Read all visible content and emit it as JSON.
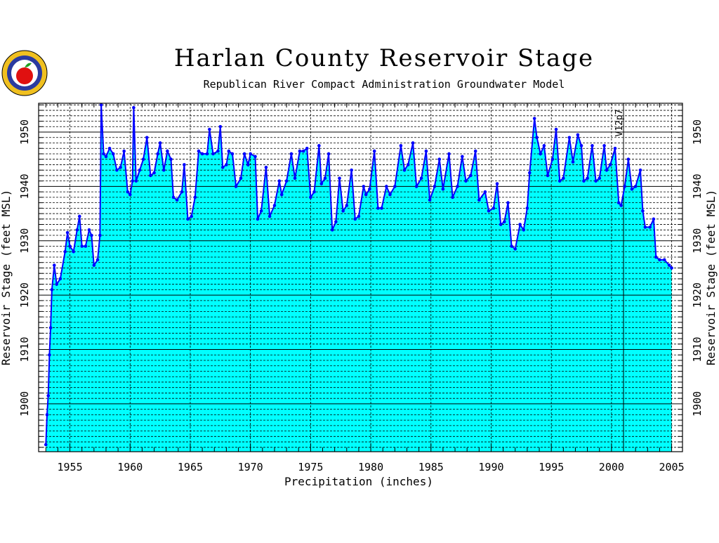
{
  "chart_data": {
    "type": "area",
    "title": "Harlan County Reservoir Stage",
    "subtitle": "Republican River Compact Administration Groundwater Model",
    "x_label": "Precipitation (inches)",
    "y_label": "Reservoir Stage (feet MSL)",
    "y2_label": "Reservoir Stage (feet MSL)",
    "annotation": {
      "text": "V12p7",
      "x": 2001
    },
    "xlim": [
      1952.4,
      2005.9
    ],
    "ylim": [
      1891.2,
      1955.3
    ],
    "xticks": [
      1955,
      1960,
      1965,
      1970,
      1975,
      1980,
      1985,
      1990,
      1995,
      2000,
      2005
    ],
    "xminorticks": [
      1953,
      1954,
      1956,
      1957,
      1958,
      1959,
      1961,
      1962,
      1963,
      1964,
      1966,
      1967,
      1968,
      1969,
      1971,
      1972,
      1973,
      1974,
      1976,
      1977,
      1978,
      1979,
      1981,
      1982,
      1983,
      1984,
      1986,
      1987,
      1988,
      1989,
      1991,
      1992,
      1993,
      1994,
      1996,
      1997,
      1998,
      1999,
      2001,
      2002,
      2003,
      2004
    ],
    "yticks": [
      1900,
      1910,
      1920,
      1930,
      1940,
      1950
    ],
    "yminorticks": [
      1892,
      1893,
      1894,
      1895,
      1896,
      1897,
      1898,
      1899,
      1901,
      1902,
      1903,
      1904,
      1905,
      1906,
      1907,
      1908,
      1909,
      1911,
      1912,
      1913,
      1914,
      1915,
      1916,
      1917,
      1918,
      1919,
      1921,
      1922,
      1923,
      1924,
      1925,
      1926,
      1927,
      1928,
      1929,
      1931,
      1932,
      1933,
      1934,
      1935,
      1936,
      1937,
      1938,
      1939,
      1941,
      1942,
      1943,
      1944,
      1945,
      1946,
      1947,
      1948,
      1949,
      1951,
      1952,
      1953,
      1954,
      1955
    ],
    "grid": true,
    "fill_color": "#00ffff",
    "series": [
      {
        "name": "Reservoir Stage",
        "color": "#0000ff",
        "x": [
          1953.0,
          1953.1,
          1953.2,
          1953.3,
          1953.4,
          1953.5,
          1953.7,
          1953.9,
          1954.2,
          1954.6,
          1954.8,
          1955.0,
          1955.3,
          1955.6,
          1955.8,
          1956.0,
          1956.3,
          1956.6,
          1956.8,
          1957.0,
          1957.3,
          1957.5,
          1957.6,
          1957.8,
          1958.0,
          1958.3,
          1958.6,
          1958.9,
          1959.2,
          1959.5,
          1959.8,
          1960.0,
          1960.2,
          1960.3,
          1960.5,
          1960.8,
          1961.1,
          1961.4,
          1961.7,
          1962.0,
          1962.3,
          1962.5,
          1962.8,
          1963.1,
          1963.4,
          1963.6,
          1963.9,
          1964.3,
          1964.5,
          1964.8,
          1965.1,
          1965.4,
          1965.7,
          1966.0,
          1966.4,
          1966.6,
          1966.9,
          1967.3,
          1967.5,
          1967.7,
          1968.0,
          1968.2,
          1968.5,
          1968.8,
          1969.2,
          1969.5,
          1969.8,
          1970.0,
          1970.4,
          1970.6,
          1970.9,
          1971.3,
          1971.6,
          1972.0,
          1972.4,
          1972.6,
          1973.0,
          1973.4,
          1973.7,
          1974.1,
          1974.4,
          1974.7,
          1975.0,
          1975.3,
          1975.7,
          1975.9,
          1976.2,
          1976.5,
          1976.8,
          1977.1,
          1977.4,
          1977.7,
          1978.0,
          1978.4,
          1978.7,
          1979.0,
          1979.4,
          1979.6,
          1979.9,
          1980.3,
          1980.6,
          1980.9,
          1981.3,
          1981.6,
          1982.0,
          1982.5,
          1982.8,
          1983.1,
          1983.5,
          1983.8,
          1984.2,
          1984.6,
          1984.9,
          1985.3,
          1985.7,
          1986.0,
          1986.5,
          1986.8,
          1987.2,
          1987.6,
          1987.9,
          1988.3,
          1988.7,
          1989.0,
          1989.5,
          1989.8,
          1990.2,
          1990.5,
          1990.8,
          1991.1,
          1991.4,
          1991.7,
          1992.0,
          1992.4,
          1992.7,
          1993.0,
          1993.2,
          1993.6,
          1993.8,
          1994.1,
          1994.4,
          1994.7,
          1995.1,
          1995.4,
          1995.7,
          1996.0,
          1996.5,
          1996.8,
          1997.2,
          1997.5,
          1997.7,
          1998.0,
          1998.4,
          1998.7,
          1999.0,
          1999.4,
          1999.6,
          1999.9,
          2000.3,
          2000.6,
          2000.8,
          2001.1,
          2001.4,
          2001.7,
          2002.0,
          2002.4,
          2002.6,
          2002.8,
          2003.2,
          2003.5,
          2003.7,
          2004.0,
          2004.4,
          2004.8,
          2005.0
        ],
        "values": [
          1892.5,
          1898,
          1901.5,
          1909,
          1914,
          1921,
          1925.5,
          1922,
          1923,
          1928,
          1931.5,
          1929,
          1928,
          1932,
          1934.5,
          1929,
          1929,
          1932,
          1931,
          1925.5,
          1926.5,
          1931,
          1955,
          1946,
          1945.5,
          1947,
          1946,
          1943,
          1943.5,
          1946.5,
          1939,
          1938.5,
          1941,
          1954.5,
          1941,
          1943,
          1945,
          1949,
          1942,
          1942.5,
          1946,
          1948,
          1943,
          1946.5,
          1945,
          1938,
          1937.5,
          1939,
          1944,
          1934,
          1934.5,
          1938,
          1946.5,
          1946,
          1946,
          1950.5,
          1946,
          1946.5,
          1951,
          1943.5,
          1944,
          1946.5,
          1946,
          1940,
          1941.5,
          1946,
          1944,
          1946,
          1945.5,
          1934,
          1935.5,
          1943.5,
          1934.5,
          1936.5,
          1941,
          1938.5,
          1941,
          1946,
          1941.5,
          1946.5,
          1946.5,
          1947,
          1938,
          1939,
          1947.5,
          1940.5,
          1941.5,
          1946,
          1932,
          1933.5,
          1941.5,
          1935.5,
          1936.5,
          1943,
          1934,
          1934.5,
          1940,
          1938.5,
          1939.5,
          1946.5,
          1936,
          1936,
          1940,
          1938.5,
          1940,
          1947.5,
          1943,
          1944,
          1948,
          1940,
          1941.5,
          1946.5,
          1937.5,
          1940,
          1945,
          1939.5,
          1946,
          1938,
          1940,
          1945.5,
          1941,
          1942,
          1946.5,
          1937.5,
          1939,
          1935.5,
          1936,
          1940.5,
          1933,
          1933.5,
          1937,
          1929,
          1928.5,
          1933,
          1932,
          1936,
          1942.5,
          1952.5,
          1949,
          1946,
          1947.5,
          1942,
          1945,
          1950.5,
          1941,
          1941.5,
          1949,
          1944.5,
          1949.5,
          1947.5,
          1941,
          1941.5,
          1947.5,
          1941,
          1941.5,
          1947.5,
          1943,
          1944,
          1947,
          1937,
          1936.5,
          1940,
          1945,
          1939.5,
          1940,
          1943,
          1935.5,
          1932.5,
          1932.5,
          1934,
          1927,
          1926.5,
          1926.5,
          1925.5,
          1925
        ]
      }
    ]
  }
}
